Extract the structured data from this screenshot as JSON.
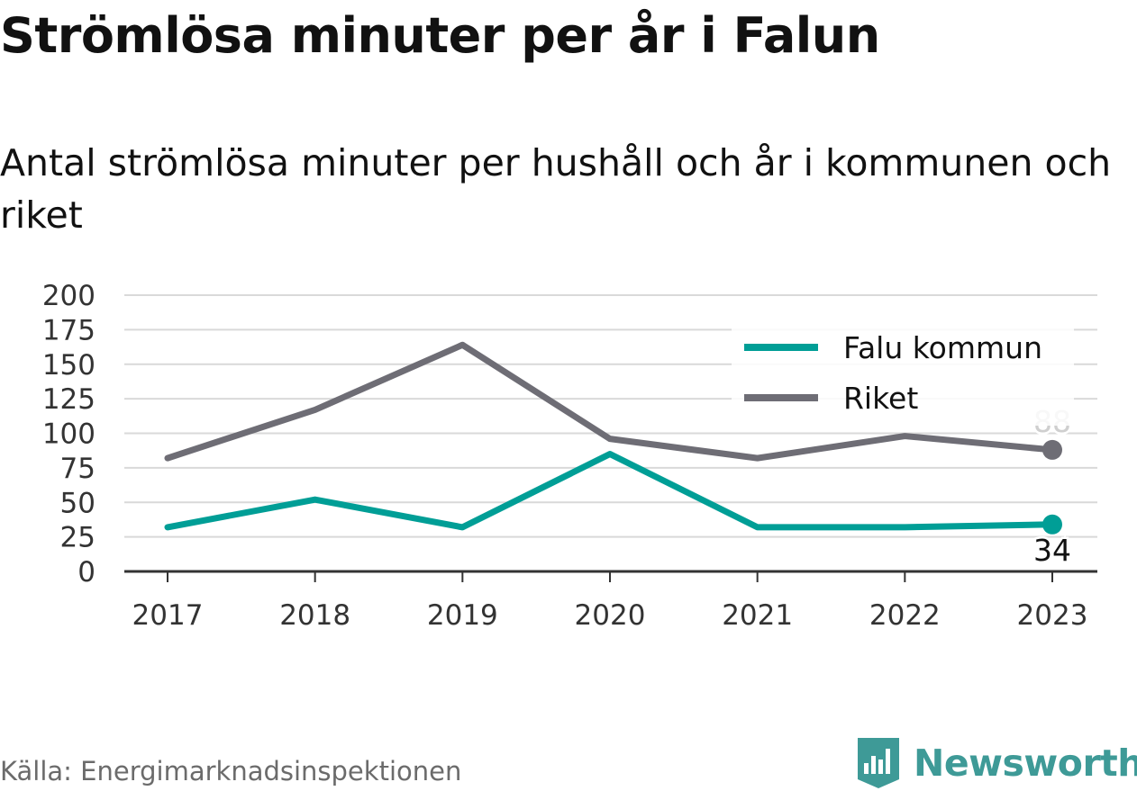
{
  "title": "Strömlösa minuter per år i Falun",
  "subtitle": "Antal strömlösa minuter per hushåll och år i kommunen och riket",
  "source": "Källa: Energimarknadsinspektionen",
  "brand": {
    "name": "Newsworthy",
    "color": "#3e9a97",
    "icon": "bar-chart-badge-icon"
  },
  "chart_data": {
    "type": "line",
    "x": [
      "2017",
      "2018",
      "2019",
      "2020",
      "2021",
      "2022",
      "2023"
    ],
    "y_ticks": [
      "0",
      "25",
      "50",
      "75",
      "100",
      "125",
      "150",
      "175",
      "200"
    ],
    "ylim": [
      0,
      200
    ],
    "grid": true,
    "legend_position": "top-right",
    "series": [
      {
        "name": "Falu kommun",
        "color": "#009e96",
        "values": [
          32,
          52,
          32,
          85,
          32,
          32,
          34
        ],
        "end_label": "34"
      },
      {
        "name": "Riket",
        "color": "#6e6d75",
        "values": [
          82,
          117,
          164,
          96,
          82,
          98,
          88
        ],
        "end_label": "88"
      }
    ]
  }
}
